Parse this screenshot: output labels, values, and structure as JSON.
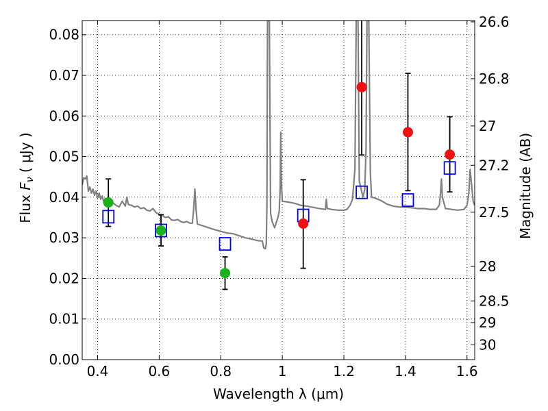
{
  "chart_data": {
    "type": "scatter",
    "xlabel": "Wavelength  λ (μm)",
    "ylabel_left": "Flux  F_ν  ( μJy )",
    "ylabel_right": "Magnitude (AB)",
    "xlim": [
      0.35,
      1.625
    ],
    "ylim": [
      0.0,
      0.0835
    ],
    "grid": true,
    "x_ticks": [
      0.4,
      0.6,
      0.8,
      1.0,
      1.2,
      1.4,
      1.6
    ],
    "x_tick_labels": [
      "0.4",
      "0.6",
      "0.8",
      "1",
      "1.2",
      "1.4",
      "1.6"
    ],
    "y_ticks": [
      0.0,
      0.01,
      0.02,
      0.03,
      0.04,
      0.05,
      0.06,
      0.07,
      0.08
    ],
    "y_tick_labels": [
      "0.00",
      "0.01",
      "0.02",
      "0.03",
      "0.04",
      "0.05",
      "0.06",
      "0.07",
      "0.08"
    ],
    "right_ticks": [
      {
        "label": "26.6",
        "mag": 26.6
      },
      {
        "label": "26.8",
        "mag": 26.8
      },
      {
        "label": "27",
        "mag": 27.0
      },
      {
        "label": "27.2",
        "mag": 27.2
      },
      {
        "label": "27.5",
        "mag": 27.5
      },
      {
        "label": "28",
        "mag": 28.0
      },
      {
        "label": "28.5",
        "mag": 28.5
      },
      {
        "label": "29",
        "mag": 29.0
      },
      {
        "label": "30",
        "mag": 30.0
      }
    ],
    "colors": {
      "green": "#1ab21a",
      "red": "#ee1111",
      "model_box": "#0000ee",
      "spectrum": "#808080",
      "errorbar": "#000000"
    },
    "series": [
      {
        "marker": "circle",
        "color": "green",
        "points": [
          {
            "x": 0.435,
            "y": 0.0387,
            "ylo": 0.0328,
            "yhi": 0.0445
          },
          {
            "x": 0.606,
            "y": 0.0318,
            "ylo": 0.028,
            "yhi": 0.0357
          },
          {
            "x": 0.814,
            "y": 0.0213,
            "ylo": 0.0173,
            "yhi": 0.0253
          }
        ]
      },
      {
        "marker": "circle",
        "color": "red",
        "points": [
          {
            "x": 1.068,
            "y": 0.0335,
            "ylo": 0.0225,
            "yhi": 0.0443
          },
          {
            "x": 1.258,
            "y": 0.0671,
            "ylo": 0.0504,
            "yhi": 0.0838
          },
          {
            "x": 1.408,
            "y": 0.056,
            "ylo": 0.0416,
            "yhi": 0.0705
          },
          {
            "x": 1.544,
            "y": 0.0505,
            "ylo": 0.0413,
            "yhi": 0.0598
          }
        ]
      },
      {
        "marker": "square",
        "color": "model_box",
        "points": [
          {
            "x": 0.435,
            "y": 0.0352
          },
          {
            "x": 0.606,
            "y": 0.0318
          },
          {
            "x": 0.814,
            "y": 0.0285
          },
          {
            "x": 1.068,
            "y": 0.0355
          },
          {
            "x": 1.258,
            "y": 0.0412
          },
          {
            "x": 1.408,
            "y": 0.0393
          },
          {
            "x": 1.544,
            "y": 0.0472
          }
        ]
      }
    ],
    "spectrum": {
      "color": "spectrum",
      "points": [
        [
          0.35,
          0.043
        ],
        [
          0.355,
          0.0448
        ],
        [
          0.36,
          0.0445
        ],
        [
          0.365,
          0.0452
        ],
        [
          0.37,
          0.0415
        ],
        [
          0.375,
          0.0425
        ],
        [
          0.38,
          0.041
        ],
        [
          0.385,
          0.042
        ],
        [
          0.39,
          0.0405
        ],
        [
          0.395,
          0.0415
        ],
        [
          0.4,
          0.0398
        ],
        [
          0.405,
          0.041
        ],
        [
          0.41,
          0.0395
        ],
        [
          0.415,
          0.0403
        ],
        [
          0.42,
          0.0388
        ],
        [
          0.425,
          0.0397
        ],
        [
          0.43,
          0.039
        ],
        [
          0.435,
          0.0382
        ],
        [
          0.44,
          0.0384
        ],
        [
          0.45,
          0.0386
        ],
        [
          0.46,
          0.038
        ],
        [
          0.47,
          0.0376
        ],
        [
          0.48,
          0.039
        ],
        [
          0.49,
          0.0378
        ],
        [
          0.495,
          0.04
        ],
        [
          0.5,
          0.0382
        ],
        [
          0.51,
          0.038
        ],
        [
          0.52,
          0.0376
        ],
        [
          0.53,
          0.0378
        ],
        [
          0.54,
          0.0372
        ],
        [
          0.55,
          0.0374
        ],
        [
          0.56,
          0.0368
        ],
        [
          0.57,
          0.0366
        ],
        [
          0.58,
          0.0372
        ],
        [
          0.59,
          0.0362
        ],
        [
          0.6,
          0.0358
        ],
        [
          0.61,
          0.0355
        ],
        [
          0.62,
          0.035
        ],
        [
          0.63,
          0.0352
        ],
        [
          0.64,
          0.0344
        ],
        [
          0.65,
          0.0343
        ],
        [
          0.66,
          0.0345
        ],
        [
          0.67,
          0.034
        ],
        [
          0.68,
          0.0338
        ],
        [
          0.69,
          0.034
        ],
        [
          0.7,
          0.0336
        ],
        [
          0.708,
          0.0336
        ],
        [
          0.712,
          0.037
        ],
        [
          0.716,
          0.042
        ],
        [
          0.72,
          0.037
        ],
        [
          0.724,
          0.0334
        ],
        [
          0.74,
          0.033
        ],
        [
          0.76,
          0.0325
        ],
        [
          0.78,
          0.032
        ],
        [
          0.8,
          0.0316
        ],
        [
          0.82,
          0.0312
        ],
        [
          0.84,
          0.031
        ],
        [
          0.86,
          0.0305
        ],
        [
          0.88,
          0.03
        ],
        [
          0.9,
          0.0297
        ],
        [
          0.92,
          0.0293
        ],
        [
          0.935,
          0.0292
        ],
        [
          0.94,
          0.0275
        ],
        [
          0.945,
          0.0273
        ],
        [
          0.948,
          0.0285
        ],
        [
          0.95,
          0.038
        ],
        [
          0.952,
          0.0835
        ],
        [
          0.958,
          0.0835
        ],
        [
          0.962,
          0.036
        ],
        [
          0.967,
          0.034
        ],
        [
          0.975,
          0.0325
        ],
        [
          0.985,
          0.0348
        ],
        [
          0.99,
          0.0365
        ],
        [
          0.993,
          0.042
        ],
        [
          0.995,
          0.056
        ],
        [
          0.997,
          0.044
        ],
        [
          1.0,
          0.039
        ],
        [
          1.02,
          0.0388
        ],
        [
          1.04,
          0.0385
        ],
        [
          1.06,
          0.038
        ],
        [
          1.08,
          0.0378
        ],
        [
          1.1,
          0.0375
        ],
        [
          1.12,
          0.0372
        ],
        [
          1.14,
          0.037
        ],
        [
          1.143,
          0.0395
        ],
        [
          1.146,
          0.0372
        ],
        [
          1.16,
          0.037
        ],
        [
          1.18,
          0.0368
        ],
        [
          1.2,
          0.0368
        ],
        [
          1.21,
          0.037
        ],
        [
          1.22,
          0.038
        ],
        [
          1.228,
          0.0395
        ],
        [
          1.236,
          0.047
        ],
        [
          1.24,
          0.0835
        ],
        [
          1.246,
          0.0835
        ],
        [
          1.25,
          0.044
        ],
        [
          1.256,
          0.042
        ],
        [
          1.262,
          0.04
        ],
        [
          1.268,
          0.042
        ],
        [
          1.272,
          0.052
        ],
        [
          1.275,
          0.0835
        ],
        [
          1.281,
          0.0835
        ],
        [
          1.286,
          0.046
        ],
        [
          1.29,
          0.04
        ],
        [
          1.3,
          0.0398
        ],
        [
          1.32,
          0.0392
        ],
        [
          1.34,
          0.0383
        ],
        [
          1.36,
          0.0378
        ],
        [
          1.38,
          0.0376
        ],
        [
          1.4,
          0.0375
        ],
        [
          1.42,
          0.0374
        ],
        [
          1.44,
          0.0372
        ],
        [
          1.46,
          0.0372
        ],
        [
          1.48,
          0.037
        ],
        [
          1.5,
          0.037
        ],
        [
          1.51,
          0.038
        ],
        [
          1.514,
          0.041
        ],
        [
          1.517,
          0.0445
        ],
        [
          1.52,
          0.04
        ],
        [
          1.53,
          0.0372
        ],
        [
          1.55,
          0.037
        ],
        [
          1.57,
          0.0368
        ],
        [
          1.59,
          0.037
        ],
        [
          1.6,
          0.038
        ],
        [
          1.606,
          0.041
        ],
        [
          1.61,
          0.0468
        ],
        [
          1.615,
          0.043
        ],
        [
          1.62,
          0.039
        ],
        [
          1.625,
          0.038
        ]
      ]
    }
  }
}
